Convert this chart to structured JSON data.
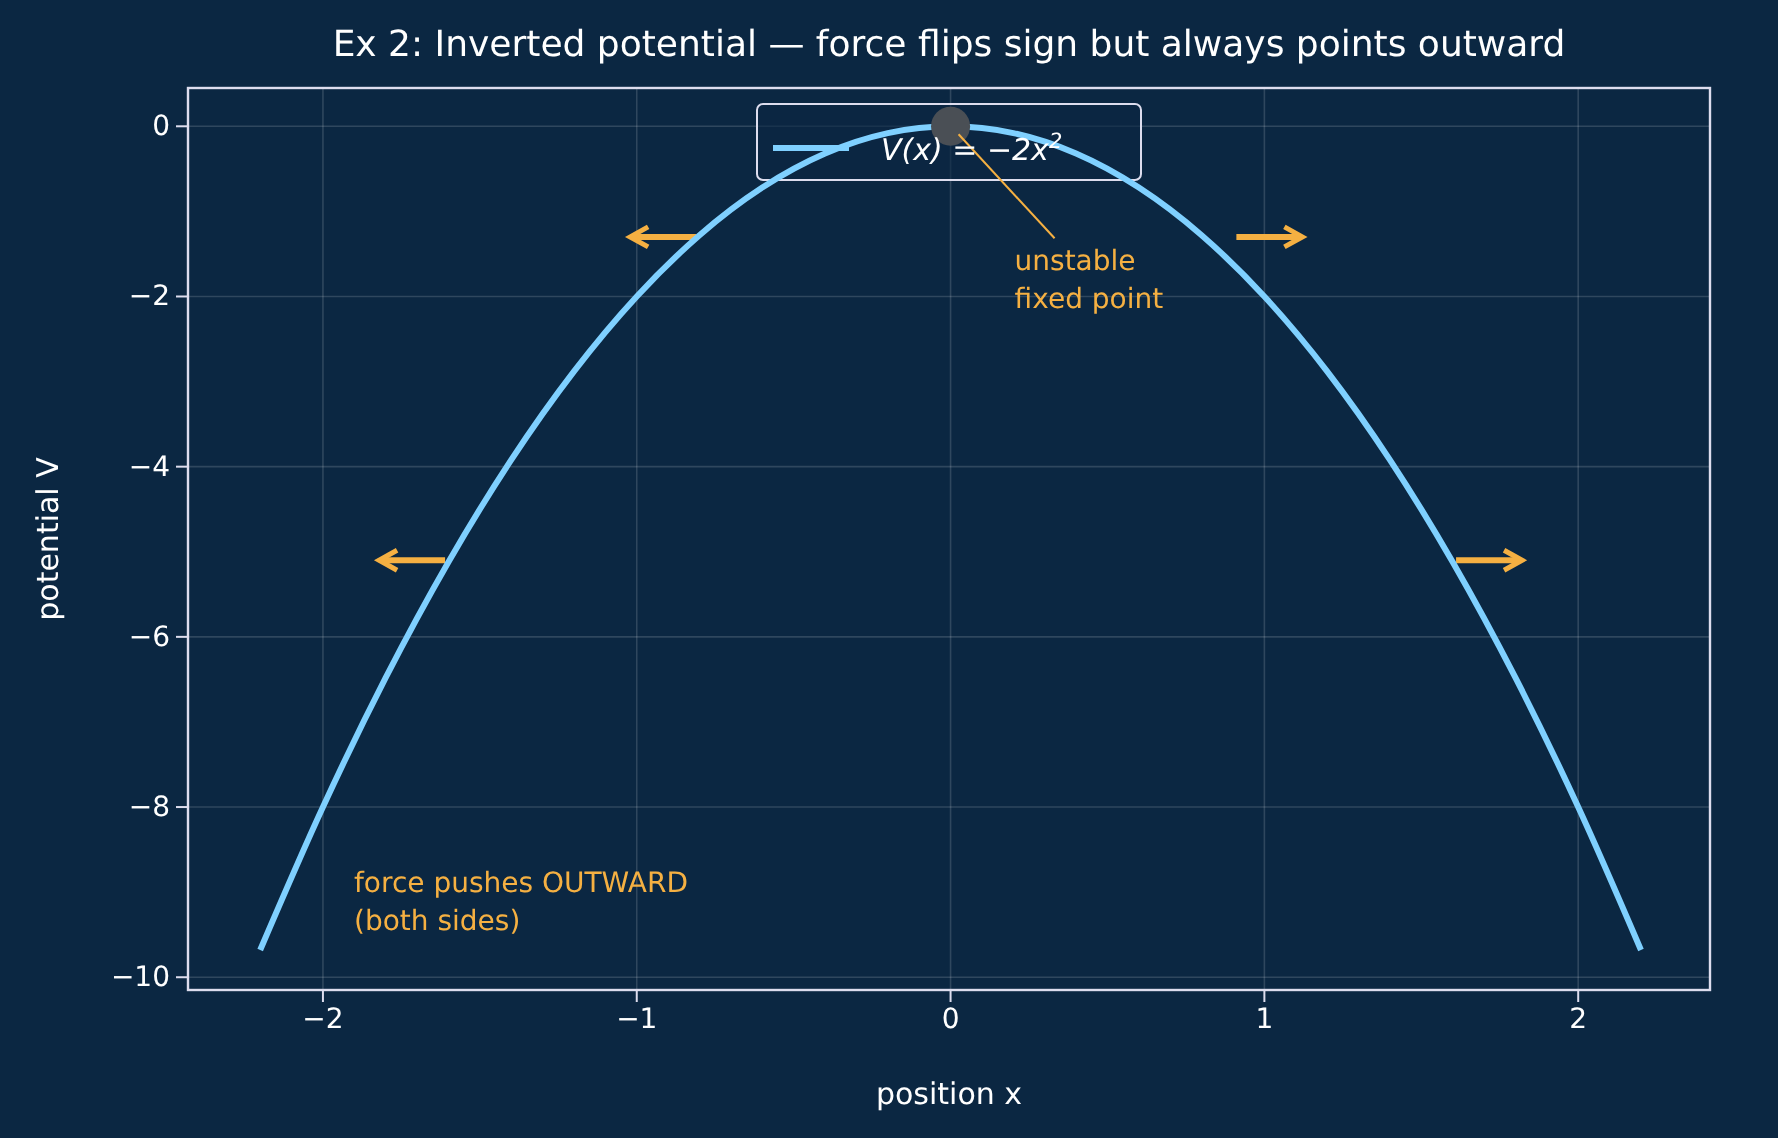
{
  "chart_data": {
    "type": "line",
    "title": "Ex 2: Inverted potential — force flips sign but always points outward",
    "xlabel": "position  x",
    "ylabel": "potential  V",
    "x": [
      -2.2,
      -2.0,
      -1.8,
      -1.6,
      -1.4,
      -1.2,
      -1.0,
      -0.8,
      -0.6,
      -0.4,
      -0.2,
      0,
      0.2,
      0.4,
      0.6,
      0.8,
      1.0,
      1.2,
      1.4,
      1.6,
      1.8,
      2.0,
      2.2
    ],
    "series": [
      {
        "name": "V(x) = −2x$^{2}$",
        "color": "#7fd0ff",
        "values": [
          -9.68,
          -8,
          -6.48,
          -5.12,
          -3.92,
          -2.88,
          -2,
          -1.28,
          -0.72,
          -0.32,
          -0.08,
          0,
          -0.08,
          -0.32,
          -0.72,
          -1.28,
          -2,
          -2.88,
          -3.92,
          -5.12,
          -6.48,
          -8,
          -9.68
        ]
      },
      {
        "type": "scatter",
        "color": "#4a4f55",
        "x": [
          0
        ],
        "values": [
          0
        ],
        "marker": "circle"
      }
    ],
    "xlim": [
      -2.43,
      2.42
    ],
    "ylim": [
      -10.15,
      0.45
    ],
    "xticks": [
      {
        "value": -2,
        "label": "−2"
      },
      {
        "value": -1,
        "label": "−1"
      },
      0,
      1,
      2
    ],
    "yticks": [
      {
        "value": -10,
        "label": "−10"
      },
      {
        "value": -8,
        "label": "−8"
      },
      {
        "value": -6,
        "label": "−6"
      },
      {
        "value": -4,
        "label": "−4"
      },
      {
        "value": -2,
        "label": "−2"
      },
      0
    ],
    "grid": true,
    "legend": "top",
    "annotations": [
      {
        "text": "unstable\nfixed point",
        "x": 0,
        "y": 0
      },
      "force pushes OUTWARD\n(both sides)"
    ]
  }
}
